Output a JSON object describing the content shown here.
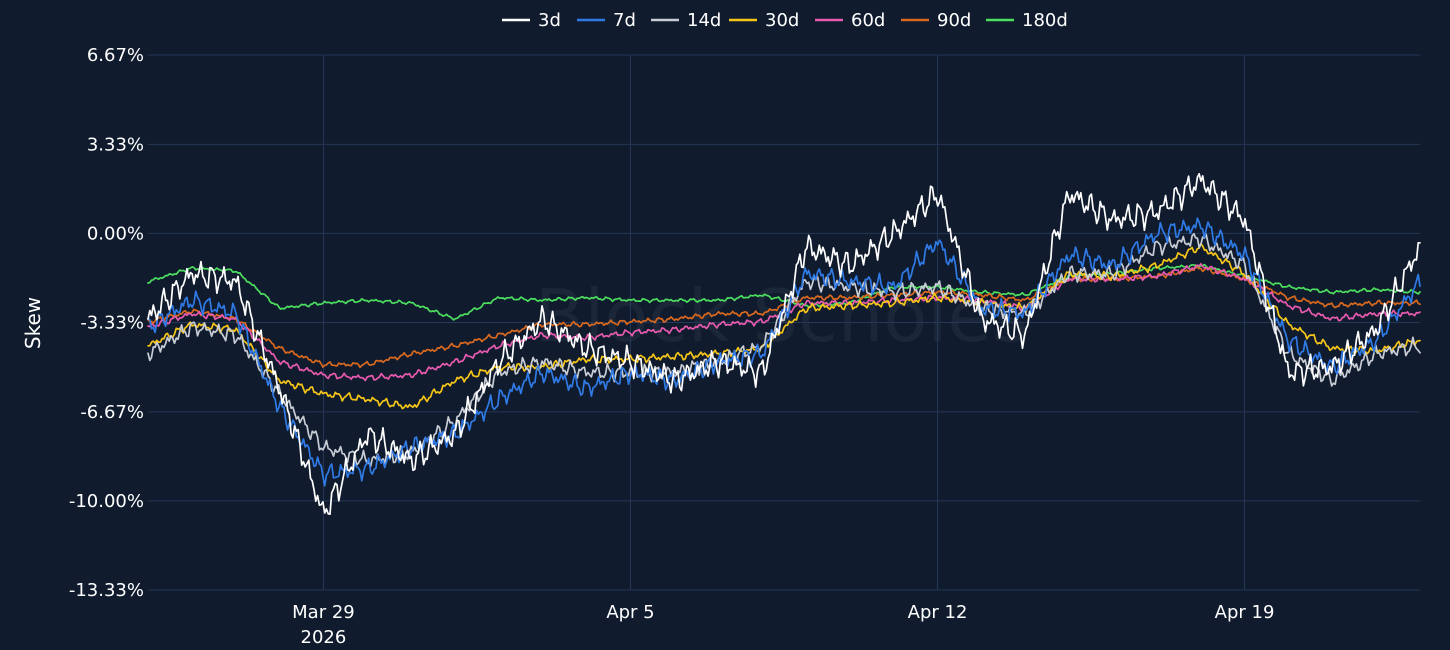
{
  "chart_data": {
    "type": "line",
    "ylabel": "Skew",
    "watermark": "Block Scholes",
    "legend_position": "top-center",
    "grid": true,
    "ylim": [
      -13.33,
      6.67
    ],
    "xlim": [
      "2026-03-25",
      "2026-04-23"
    ],
    "y_ticks": [
      {
        "value": 6.67,
        "label": "6.67%"
      },
      {
        "value": 3.33,
        "label": "3.33%"
      },
      {
        "value": 0.0,
        "label": "0.00%"
      },
      {
        "value": -3.33,
        "label": "-3.33%"
      },
      {
        "value": -6.67,
        "label": "-6.67%"
      },
      {
        "value": -10.0,
        "label": "-10.00%"
      },
      {
        "value": -13.33,
        "label": "-13.33%"
      }
    ],
    "x_ticks": [
      {
        "value": "2026-03-29",
        "label": "Mar 29",
        "sublabel": "2026"
      },
      {
        "value": "2026-04-05",
        "label": "Apr 5",
        "sublabel": ""
      },
      {
        "value": "2026-04-12",
        "label": "Apr 12",
        "sublabel": ""
      },
      {
        "value": "2026-04-19",
        "label": "Apr 19",
        "sublabel": ""
      }
    ],
    "x": [
      "2026-03-25",
      "2026-03-26",
      "2026-03-27",
      "2026-03-28",
      "2026-03-29",
      "2026-03-30",
      "2026-03-31",
      "2026-04-01",
      "2026-04-02",
      "2026-04-03",
      "2026-04-04",
      "2026-04-05",
      "2026-04-06",
      "2026-04-07",
      "2026-04-08",
      "2026-04-09",
      "2026-04-10",
      "2026-04-11",
      "2026-04-12",
      "2026-04-13",
      "2026-04-14",
      "2026-04-15",
      "2026-04-16",
      "2026-04-17",
      "2026-04-18",
      "2026-04-19",
      "2026-04-20",
      "2026-04-21",
      "2026-04-22",
      "2026-04-23"
    ],
    "series": [
      {
        "name": "3d",
        "color": "#ffffff",
        "values": [
          -3.2,
          -1.5,
          -1.8,
          -5.8,
          -10.5,
          -7.5,
          -8.5,
          -7.5,
          -4.8,
          -3.2,
          -4.3,
          -4.8,
          -5.5,
          -4.8,
          -5.2,
          -0.5,
          -1.2,
          0.0,
          1.5,
          -3.2,
          -3.8,
          1.5,
          0.5,
          0.8,
          2.0,
          0.5,
          -5.2,
          -5.0,
          -3.6,
          -0.5
        ]
      },
      {
        "name": "7d",
        "color": "#2f7ae5",
        "values": [
          -3.5,
          -2.5,
          -3.0,
          -6.5,
          -9.0,
          -8.8,
          -8.0,
          -7.5,
          -6.2,
          -5.2,
          -5.8,
          -5.2,
          -5.5,
          -4.8,
          -4.5,
          -1.5,
          -1.8,
          -2.0,
          -0.3,
          -2.8,
          -3.0,
          -0.8,
          -1.2,
          0.0,
          0.3,
          -0.8,
          -4.0,
          -5.0,
          -4.0,
          -1.8
        ]
      },
      {
        "name": "14d",
        "color": "#c8ccd4",
        "values": [
          -4.5,
          -3.5,
          -3.8,
          -6.0,
          -8.0,
          -8.5,
          -8.2,
          -7.0,
          -5.2,
          -4.8,
          -5.2,
          -5.2,
          -5.2,
          -4.8,
          -4.2,
          -1.8,
          -2.0,
          -2.2,
          -2.0,
          -2.8,
          -3.0,
          -1.5,
          -1.5,
          -0.5,
          -0.2,
          -1.2,
          -4.5,
          -5.5,
          -4.5,
          -4.2
        ]
      },
      {
        "name": "30d",
        "color": "#f5c518",
        "values": [
          -4.2,
          -3.4,
          -3.6,
          -5.5,
          -6.0,
          -6.2,
          -6.5,
          -5.5,
          -5.0,
          -5.0,
          -4.7,
          -4.7,
          -4.6,
          -4.5,
          -4.3,
          -2.8,
          -2.7,
          -2.6,
          -2.4,
          -2.6,
          -2.8,
          -1.5,
          -1.6,
          -1.2,
          -0.5,
          -1.5,
          -3.4,
          -4.3,
          -4.4,
          -4.0
        ]
      },
      {
        "name": "60d",
        "color": "#e85aae",
        "values": [
          -3.5,
          -3.0,
          -3.2,
          -4.8,
          -5.3,
          -5.4,
          -5.3,
          -4.8,
          -4.2,
          -3.8,
          -3.9,
          -3.7,
          -3.6,
          -3.4,
          -3.3,
          -2.6,
          -2.6,
          -2.5,
          -2.4,
          -2.5,
          -2.8,
          -1.7,
          -1.7,
          -1.6,
          -1.2,
          -1.7,
          -2.7,
          -3.2,
          -3.0,
          -3.0
        ]
      },
      {
        "name": "90d",
        "color": "#d9691e",
        "values": [
          -3.3,
          -2.9,
          -3.2,
          -4.3,
          -4.9,
          -4.9,
          -4.5,
          -4.2,
          -3.8,
          -3.4,
          -3.4,
          -3.3,
          -3.2,
          -3.0,
          -3.0,
          -2.4,
          -2.4,
          -2.3,
          -2.2,
          -2.3,
          -2.5,
          -1.7,
          -1.7,
          -1.6,
          -1.3,
          -1.7,
          -2.4,
          -2.7,
          -2.6,
          -2.6
        ]
      },
      {
        "name": "180d",
        "color": "#4cde5e",
        "values": [
          -1.8,
          -1.3,
          -1.4,
          -2.8,
          -2.6,
          -2.5,
          -2.6,
          -3.2,
          -2.4,
          -2.5,
          -2.4,
          -2.5,
          -2.5,
          -2.5,
          -2.3,
          -2.7,
          -2.6,
          -2.0,
          -2.0,
          -2.2,
          -2.3,
          -1.6,
          -1.5,
          -1.3,
          -1.2,
          -1.6,
          -2.0,
          -2.2,
          -2.1,
          -2.2
        ]
      }
    ]
  }
}
